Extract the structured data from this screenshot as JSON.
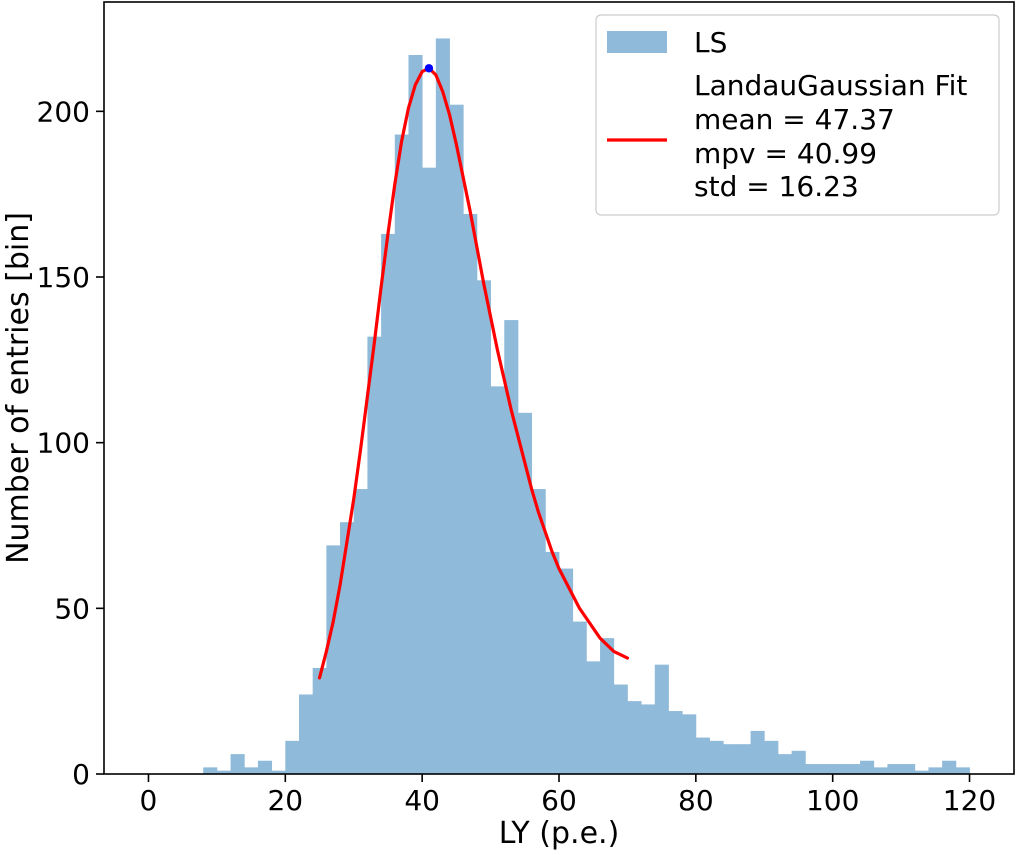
{
  "chart_data": {
    "type": "bar",
    "title": "",
    "xlabel": "LY (p.e.)",
    "ylabel": "Number of entries [bin]",
    "xlim": [
      -6.5,
      126.5
    ],
    "ylim": [
      0,
      233
    ],
    "grid": false,
    "x_ticks": [
      0,
      20,
      40,
      60,
      80,
      100,
      120
    ],
    "y_ticks": [
      0,
      50,
      100,
      150,
      200
    ],
    "legend_placement": "top-right",
    "histogram": {
      "name": "LS",
      "color": "#8fbad9",
      "bin_edges": [
        8,
        10,
        12,
        14,
        16,
        18,
        20,
        22,
        24,
        26,
        28,
        30,
        32,
        34,
        36,
        38,
        40,
        42,
        44,
        46,
        48,
        50,
        52,
        54,
        56,
        58,
        60,
        62,
        64,
        66,
        68,
        70,
        72,
        74,
        76,
        78,
        80,
        82,
        84,
        86,
        88,
        90,
        92,
        94,
        96,
        98,
        100,
        102,
        104,
        106,
        108,
        110,
        112,
        114,
        116,
        118,
        120
      ],
      "counts": [
        2,
        1,
        6,
        2,
        4,
        1,
        10,
        24,
        32,
        69,
        76,
        86,
        132,
        163,
        193,
        217,
        183,
        222,
        202,
        169,
        149,
        117,
        137,
        109,
        86,
        67,
        62,
        46,
        34,
        41,
        27,
        22,
        21,
        33,
        19,
        18,
        11,
        10,
        9,
        9,
        13,
        10,
        6,
        7,
        3,
        3,
        3,
        3,
        4,
        2,
        3,
        3,
        1,
        2,
        4,
        2
      ]
    },
    "fit": {
      "name": "LandauGaussian Fit",
      "color": "#ff0000",
      "x": [
        25,
        26,
        27,
        28,
        29,
        30,
        31,
        32,
        33,
        34,
        35,
        36,
        37,
        38,
        39,
        40,
        41,
        42,
        43,
        44,
        45,
        46,
        47,
        48,
        49,
        50,
        51,
        52,
        53,
        54,
        55,
        56,
        57,
        58,
        59,
        60,
        61,
        62,
        63,
        64,
        65,
        66,
        67,
        68,
        69,
        70
      ],
      "y": [
        29,
        37,
        46,
        57,
        70,
        83,
        98,
        114,
        130,
        147,
        163,
        178,
        191,
        201,
        208,
        212,
        213,
        211,
        206,
        199,
        190,
        180,
        170,
        159,
        148,
        138,
        128,
        119,
        110,
        102,
        94,
        86,
        79,
        73,
        67,
        62,
        58,
        54,
        50,
        47,
        44,
        41,
        39,
        37,
        36,
        35
      ],
      "peak": {
        "x": 40.99,
        "y": 213,
        "color": "#0000ff"
      }
    },
    "legend": {
      "hist_label": "LS",
      "fit_label": "LandauGaussian Fit",
      "stats": [
        "mean = 47.37",
        "mpv = 40.99",
        "std = 16.23"
      ]
    }
  }
}
